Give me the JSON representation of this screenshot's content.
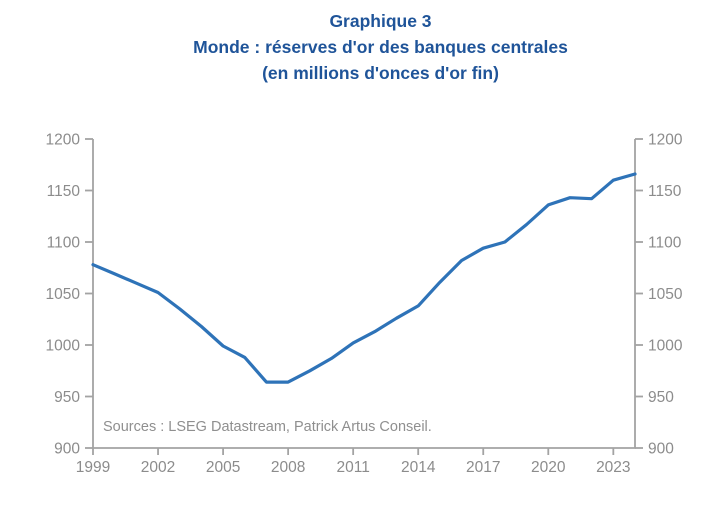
{
  "title": {
    "line1": "Graphique 3",
    "line2": "Monde : réserves d'or des banques centrales",
    "line3": "(en millions d'onces d'or fin)"
  },
  "source_note": "Sources : LSEG Datastream, Patrick Artus Conseil.",
  "colors": {
    "title": "#1f5499",
    "line": "#2e73b8",
    "axis": "#a3a3a3",
    "tick_label": "#8c8c8c",
    "source_text": "#8f8f8f"
  },
  "chart_data": {
    "type": "line",
    "title": "Graphique 3 — Monde : réserves d'or des banques centrales (en millions d'onces d'or fin)",
    "xlabel": "",
    "ylabel": "millions d'onces d'or fin",
    "x": [
      1999,
      2000,
      2001,
      2002,
      2003,
      2004,
      2005,
      2006,
      2007,
      2008,
      2009,
      2010,
      2011,
      2012,
      2013,
      2014,
      2015,
      2016,
      2017,
      2018,
      2019,
      2020,
      2021,
      2022,
      2023,
      2024
    ],
    "series": [
      {
        "name": "Réserves d'or des banques centrales (millions d'onces d'or fin)",
        "values": [
          1078,
          1069,
          1060,
          1051,
          1035,
          1018,
          999,
          988,
          964,
          964,
          975,
          987,
          1002,
          1013,
          1026,
          1038,
          1061,
          1082,
          1094,
          1100,
          1117,
          1136,
          1143,
          1142,
          1160,
          1166
        ]
      }
    ],
    "ylim": [
      900,
      1200
    ],
    "xlim": [
      1999,
      2024
    ],
    "y_ticks": [
      900,
      950,
      1000,
      1050,
      1100,
      1150,
      1200
    ],
    "x_ticks": [
      1999,
      2002,
      2005,
      2008,
      2011,
      2014,
      2017,
      2020,
      2023
    ],
    "grid": false,
    "legend": "none",
    "dual_y_axis": true
  }
}
